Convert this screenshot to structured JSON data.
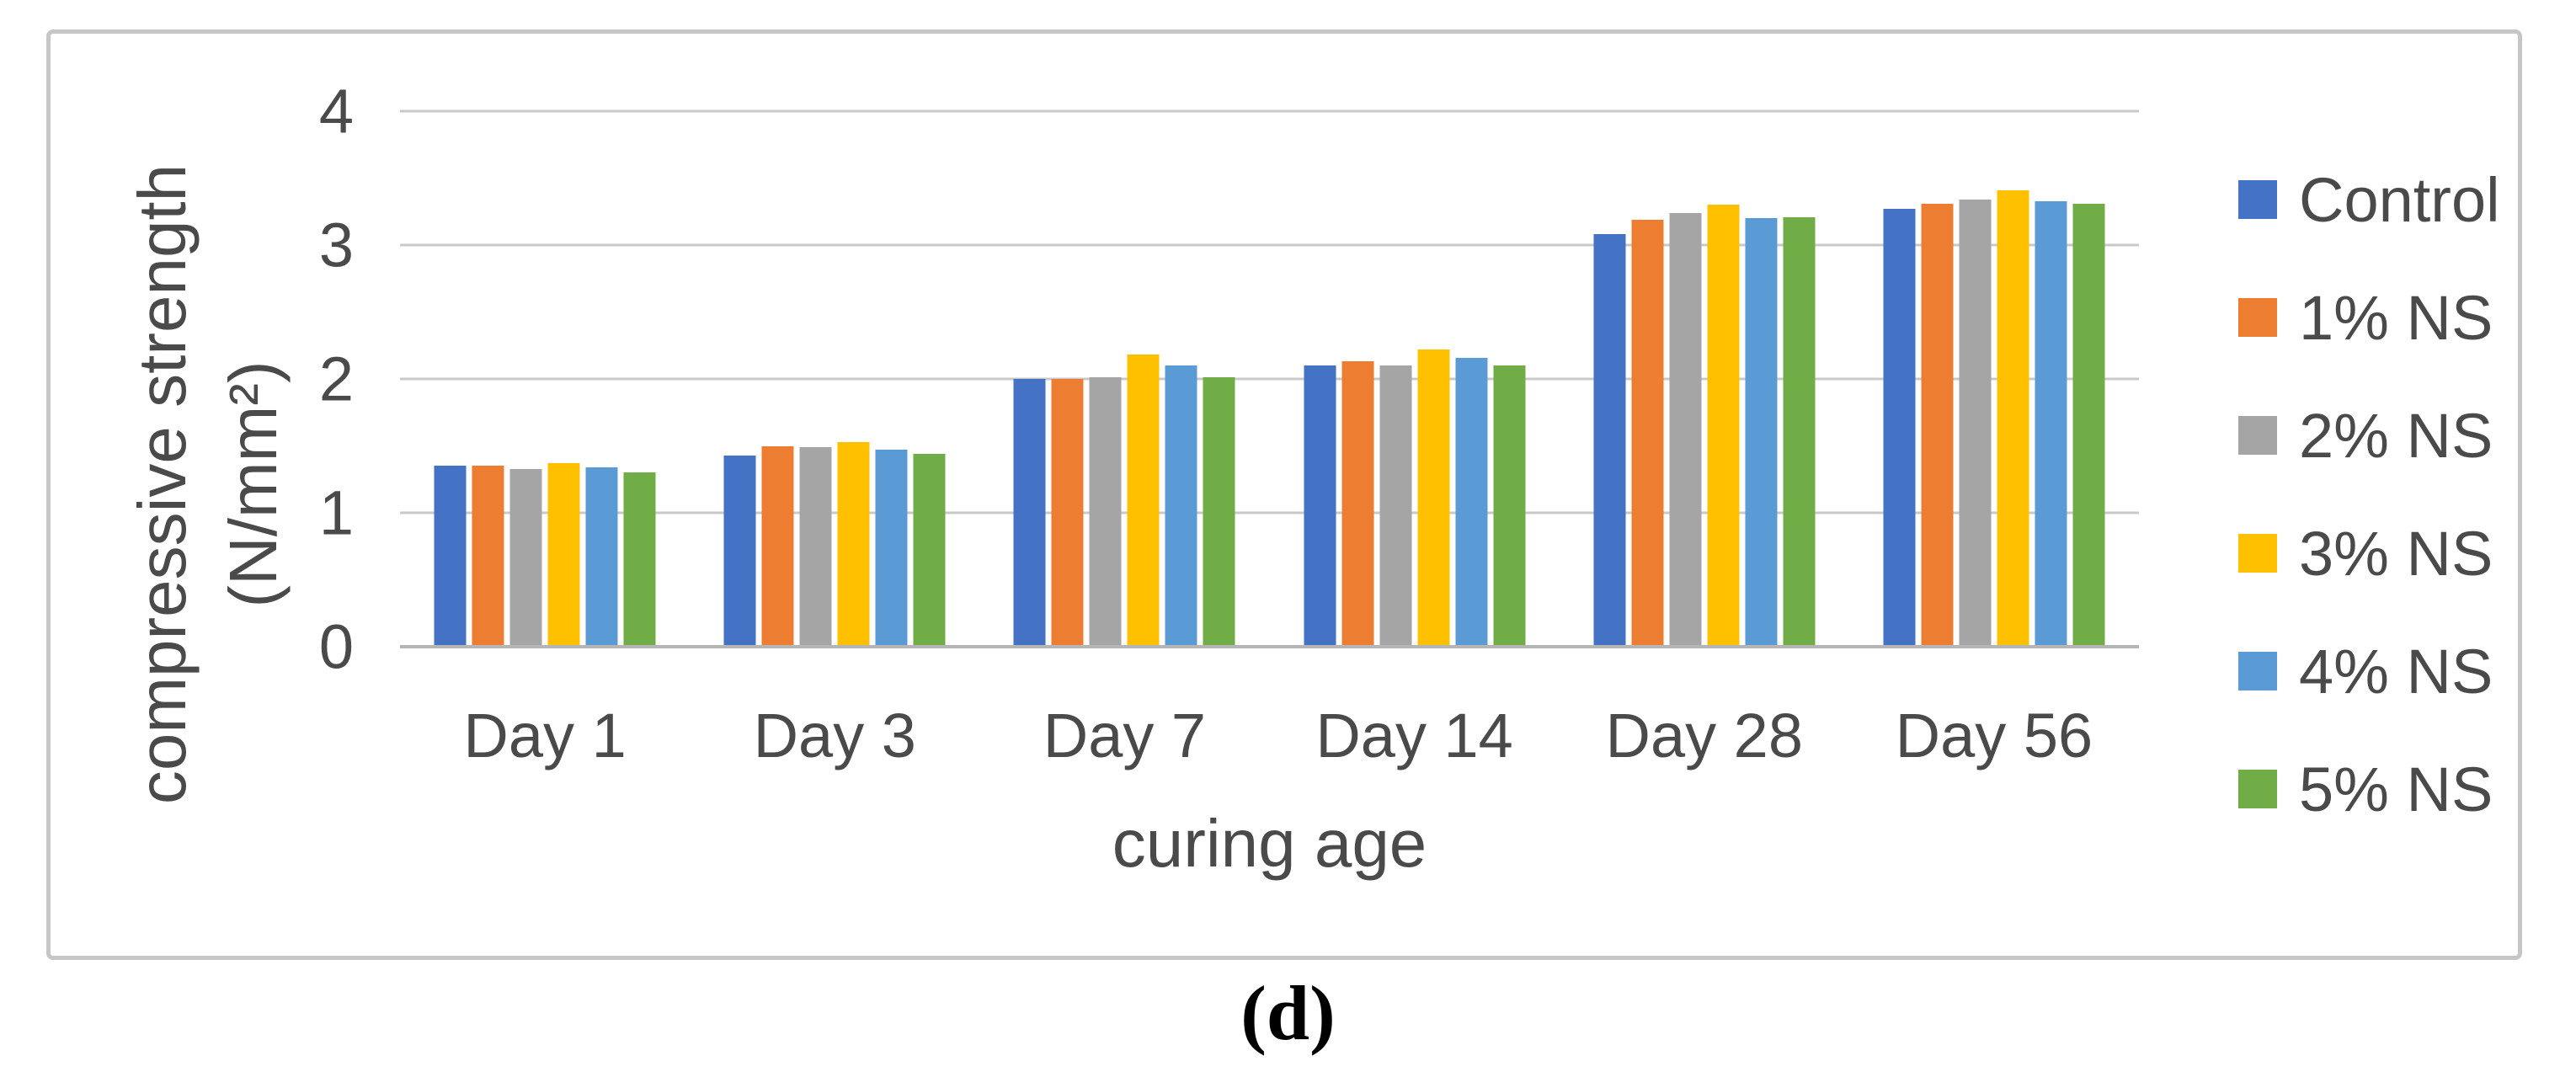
{
  "caption": "(d)",
  "chart_data": {
    "type": "bar",
    "title": "",
    "xlabel": "curing age",
    "ylabel": "compressive strength (N/mm²)",
    "ylabel_line1": "compressive strength",
    "ylabel_line2": "(N/mm²)",
    "ylim": [
      0,
      4
    ],
    "yticks": [
      0,
      1,
      2,
      3,
      4
    ],
    "grid": true,
    "legend_position": "right",
    "gridline_color": "#c9c9c9",
    "text_color": "#4a4a4a",
    "categories": [
      "Day 1",
      "Day 3",
      "Day 7",
      "Day 14",
      "Day 28",
      "Day 56"
    ],
    "series": [
      {
        "name": "Control",
        "color": "#4472C4",
        "values": [
          1.35,
          1.43,
          2.0,
          2.1,
          3.08,
          3.27
        ]
      },
      {
        "name": "1% NS",
        "color": "#ED7D31",
        "values": [
          1.35,
          1.5,
          2.0,
          2.13,
          3.19,
          3.31
        ]
      },
      {
        "name": "2% NS",
        "color": "#A5A5A5",
        "values": [
          1.33,
          1.49,
          2.01,
          2.1,
          3.24,
          3.34
        ]
      },
      {
        "name": "3% NS",
        "color": "#FFC000",
        "values": [
          1.37,
          1.53,
          2.18,
          2.22,
          3.3,
          3.41
        ]
      },
      {
        "name": "4% NS",
        "color": "#5B9BD5",
        "values": [
          1.34,
          1.47,
          2.1,
          2.16,
          3.2,
          3.33
        ]
      },
      {
        "name": "5% NS",
        "color": "#70AD47",
        "values": [
          1.3,
          1.44,
          2.01,
          2.1,
          3.21,
          3.31
        ]
      }
    ]
  }
}
